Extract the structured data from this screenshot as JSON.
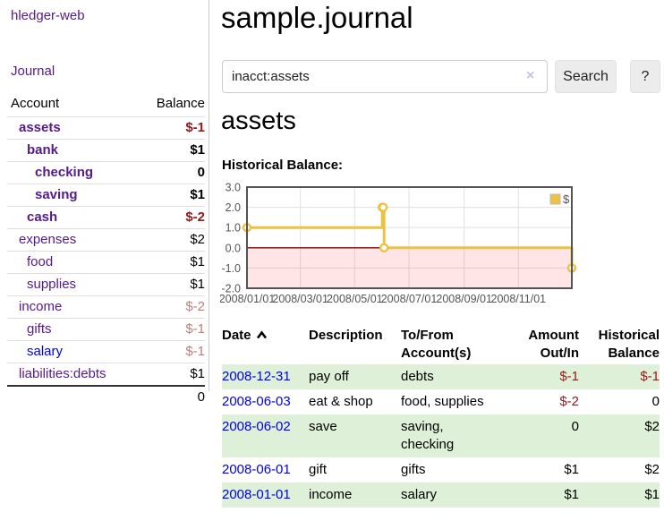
{
  "brand": "hledger-web",
  "nav": {
    "journal": "Journal"
  },
  "sidebar": {
    "headers": {
      "account": "Account",
      "balance": "Balance"
    },
    "accounts": [
      {
        "name": "assets",
        "balance": "$-1",
        "level": 1,
        "bold": true,
        "neg": "strong",
        "link": "purple"
      },
      {
        "name": "bank",
        "balance": "$1",
        "level": 2,
        "bold": true,
        "neg": "none",
        "link": "purple"
      },
      {
        "name": "checking",
        "balance": "0",
        "level": 3,
        "bold": true,
        "neg": "none",
        "link": "purple"
      },
      {
        "name": "saving",
        "balance": "$1",
        "level": 3,
        "bold": true,
        "neg": "none",
        "link": "purple"
      },
      {
        "name": "cash",
        "balance": "$-2",
        "level": 2,
        "bold": true,
        "neg": "strong",
        "link": "purple"
      },
      {
        "name": "expenses",
        "balance": "$2",
        "level": 1,
        "bold": false,
        "neg": "none",
        "link": "purple"
      },
      {
        "name": "food",
        "balance": "$1",
        "level": 2,
        "bold": false,
        "neg": "none",
        "link": "purple"
      },
      {
        "name": "supplies",
        "balance": "$1",
        "level": 2,
        "bold": false,
        "neg": "none",
        "link": "purple"
      },
      {
        "name": "income",
        "balance": "$-2",
        "level": 1,
        "bold": false,
        "neg": "soft",
        "link": "purple"
      },
      {
        "name": "gifts",
        "balance": "$-1",
        "level": 2,
        "bold": false,
        "neg": "soft",
        "link": "purple"
      },
      {
        "name": "salary",
        "balance": "$-1",
        "level": 2,
        "bold": false,
        "neg": "soft",
        "link": "blue"
      },
      {
        "name": "liabilities:debts",
        "balance": "$1",
        "level": 1,
        "bold": false,
        "neg": "none",
        "link": "purple"
      }
    ],
    "total": "0"
  },
  "main": {
    "title": "sample.journal",
    "search": {
      "value": "inacct:assets",
      "clear_icon": "×",
      "search_button": "Search",
      "help_button": "?"
    },
    "account_heading": "assets",
    "section_label": "Historical Balance:"
  },
  "chart_data": {
    "type": "line",
    "step": true,
    "title": "Historical Balance",
    "x_start": "2008-01-01",
    "x_range_days": 365,
    "ylim": [
      -2,
      3
    ],
    "y_ticks": [
      "3.0",
      "2.0",
      "1.0",
      "0.0",
      "-1.0",
      "-2.0"
    ],
    "x_ticks": [
      "2008/01/01",
      "2008/03/01",
      "2008/05/01",
      "2008/07/01",
      "2008/09/01",
      "2008/11/01"
    ],
    "legend": "$",
    "legend_position": "top-right",
    "grid": true,
    "series": [
      {
        "name": "$",
        "color": "#edc240",
        "points": [
          [
            "2008-01-01",
            1
          ],
          [
            "2008-06-01",
            2
          ],
          [
            "2008-06-02",
            2
          ],
          [
            "2008-06-03",
            0
          ],
          [
            "2008-12-31",
            -1
          ]
        ]
      }
    ],
    "negative_fill": "rgba(255,0,0,0.10)",
    "zero_line_color": "#8b0000",
    "grid_color": "#e0e0e0",
    "border_color": "#545454",
    "axis_text_color": "#545454"
  },
  "register": {
    "headers": {
      "date": "Date",
      "description": "Description",
      "tofrom": "To/From Account(s)",
      "amount": "Amount Out/In",
      "historical": "Historical Balance"
    },
    "rows": [
      {
        "date": "2008-12-31",
        "description": "pay off",
        "accounts": "debts",
        "amount": "$-1",
        "balance": "$-1",
        "amount_neg": true,
        "balance_neg": true,
        "shaded": true
      },
      {
        "date": "2008-06-03",
        "description": "eat & shop",
        "accounts": "food, supplies",
        "amount": "$-2",
        "balance": "0",
        "amount_neg": true,
        "balance_neg": false,
        "shaded": false
      },
      {
        "date": "2008-06-02",
        "description": "save",
        "accounts": "saving, checking",
        "amount": "0",
        "balance": "$2",
        "amount_neg": false,
        "balance_neg": false,
        "shaded": true
      },
      {
        "date": "2008-06-01",
        "description": "gift",
        "accounts": "gifts",
        "amount": "$1",
        "balance": "$2",
        "amount_neg": false,
        "balance_neg": false,
        "shaded": false
      },
      {
        "date": "2008-01-01",
        "description": "income",
        "accounts": "salary",
        "amount": "$1",
        "balance": "$1",
        "amount_neg": false,
        "balance_neg": false,
        "shaded": true
      }
    ]
  },
  "colors": {
    "link_purple": "#551a8b",
    "link_blue": "#0000e6",
    "negative_strong": "#96181a",
    "negative_soft": "#bd7e7e",
    "row_green": "#dff0d8",
    "chart_gold": "#edc240"
  }
}
